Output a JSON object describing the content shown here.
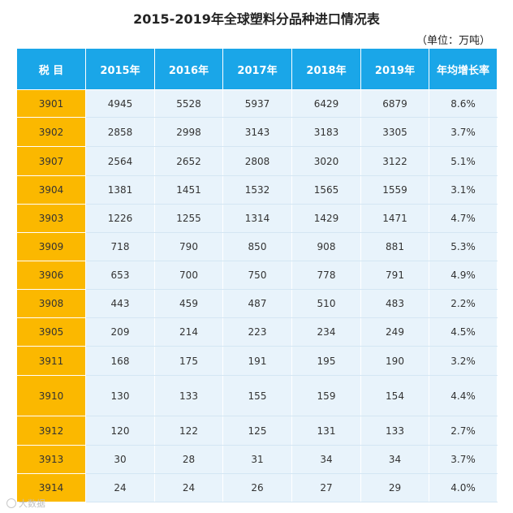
{
  "chart_data": {
    "type": "table",
    "title": "2015-2019年全球塑料分品种进口情况表",
    "unit_note": "（单位：万吨）",
    "columns": [
      "税 目",
      "2015年",
      "2016年",
      "2017年",
      "2018年",
      "2019年",
      "年均增长率"
    ],
    "rows": [
      [
        "3901",
        "4945",
        "5528",
        "5937",
        "6429",
        "6879",
        "8.6%"
      ],
      [
        "3902",
        "2858",
        "2998",
        "3143",
        "3183",
        "3305",
        "3.7%"
      ],
      [
        "3907",
        "2564",
        "2652",
        "2808",
        "3020",
        "3122",
        "5.1%"
      ],
      [
        "3904",
        "1381",
        "1451",
        "1532",
        "1565",
        "1559",
        "3.1%"
      ],
      [
        "3903",
        "1226",
        "1255",
        "1314",
        "1429",
        "1471",
        "4.7%"
      ],
      [
        "3909",
        "718",
        "790",
        "850",
        "908",
        "881",
        "5.3%"
      ],
      [
        "3906",
        "653",
        "700",
        "750",
        "778",
        "791",
        "4.9%"
      ],
      [
        "3908",
        "443",
        "459",
        "487",
        "510",
        "483",
        "2.2%"
      ],
      [
        "3905",
        "209",
        "214",
        "223",
        "234",
        "249",
        "4.5%"
      ],
      [
        "3911",
        "168",
        "175",
        "191",
        "195",
        "190",
        "3.2%"
      ],
      [
        "3910",
        "130",
        "133",
        "155",
        "159",
        "154",
        "4.4%"
      ],
      [
        "3912",
        "120",
        "122",
        "125",
        "131",
        "133",
        "2.7%"
      ],
      [
        "3913",
        "30",
        "28",
        "31",
        "34",
        "34",
        "3.7%"
      ],
      [
        "3914",
        "24",
        "24",
        "26",
        "27",
        "29",
        "4.0%"
      ]
    ]
  },
  "watermark": "大数据"
}
